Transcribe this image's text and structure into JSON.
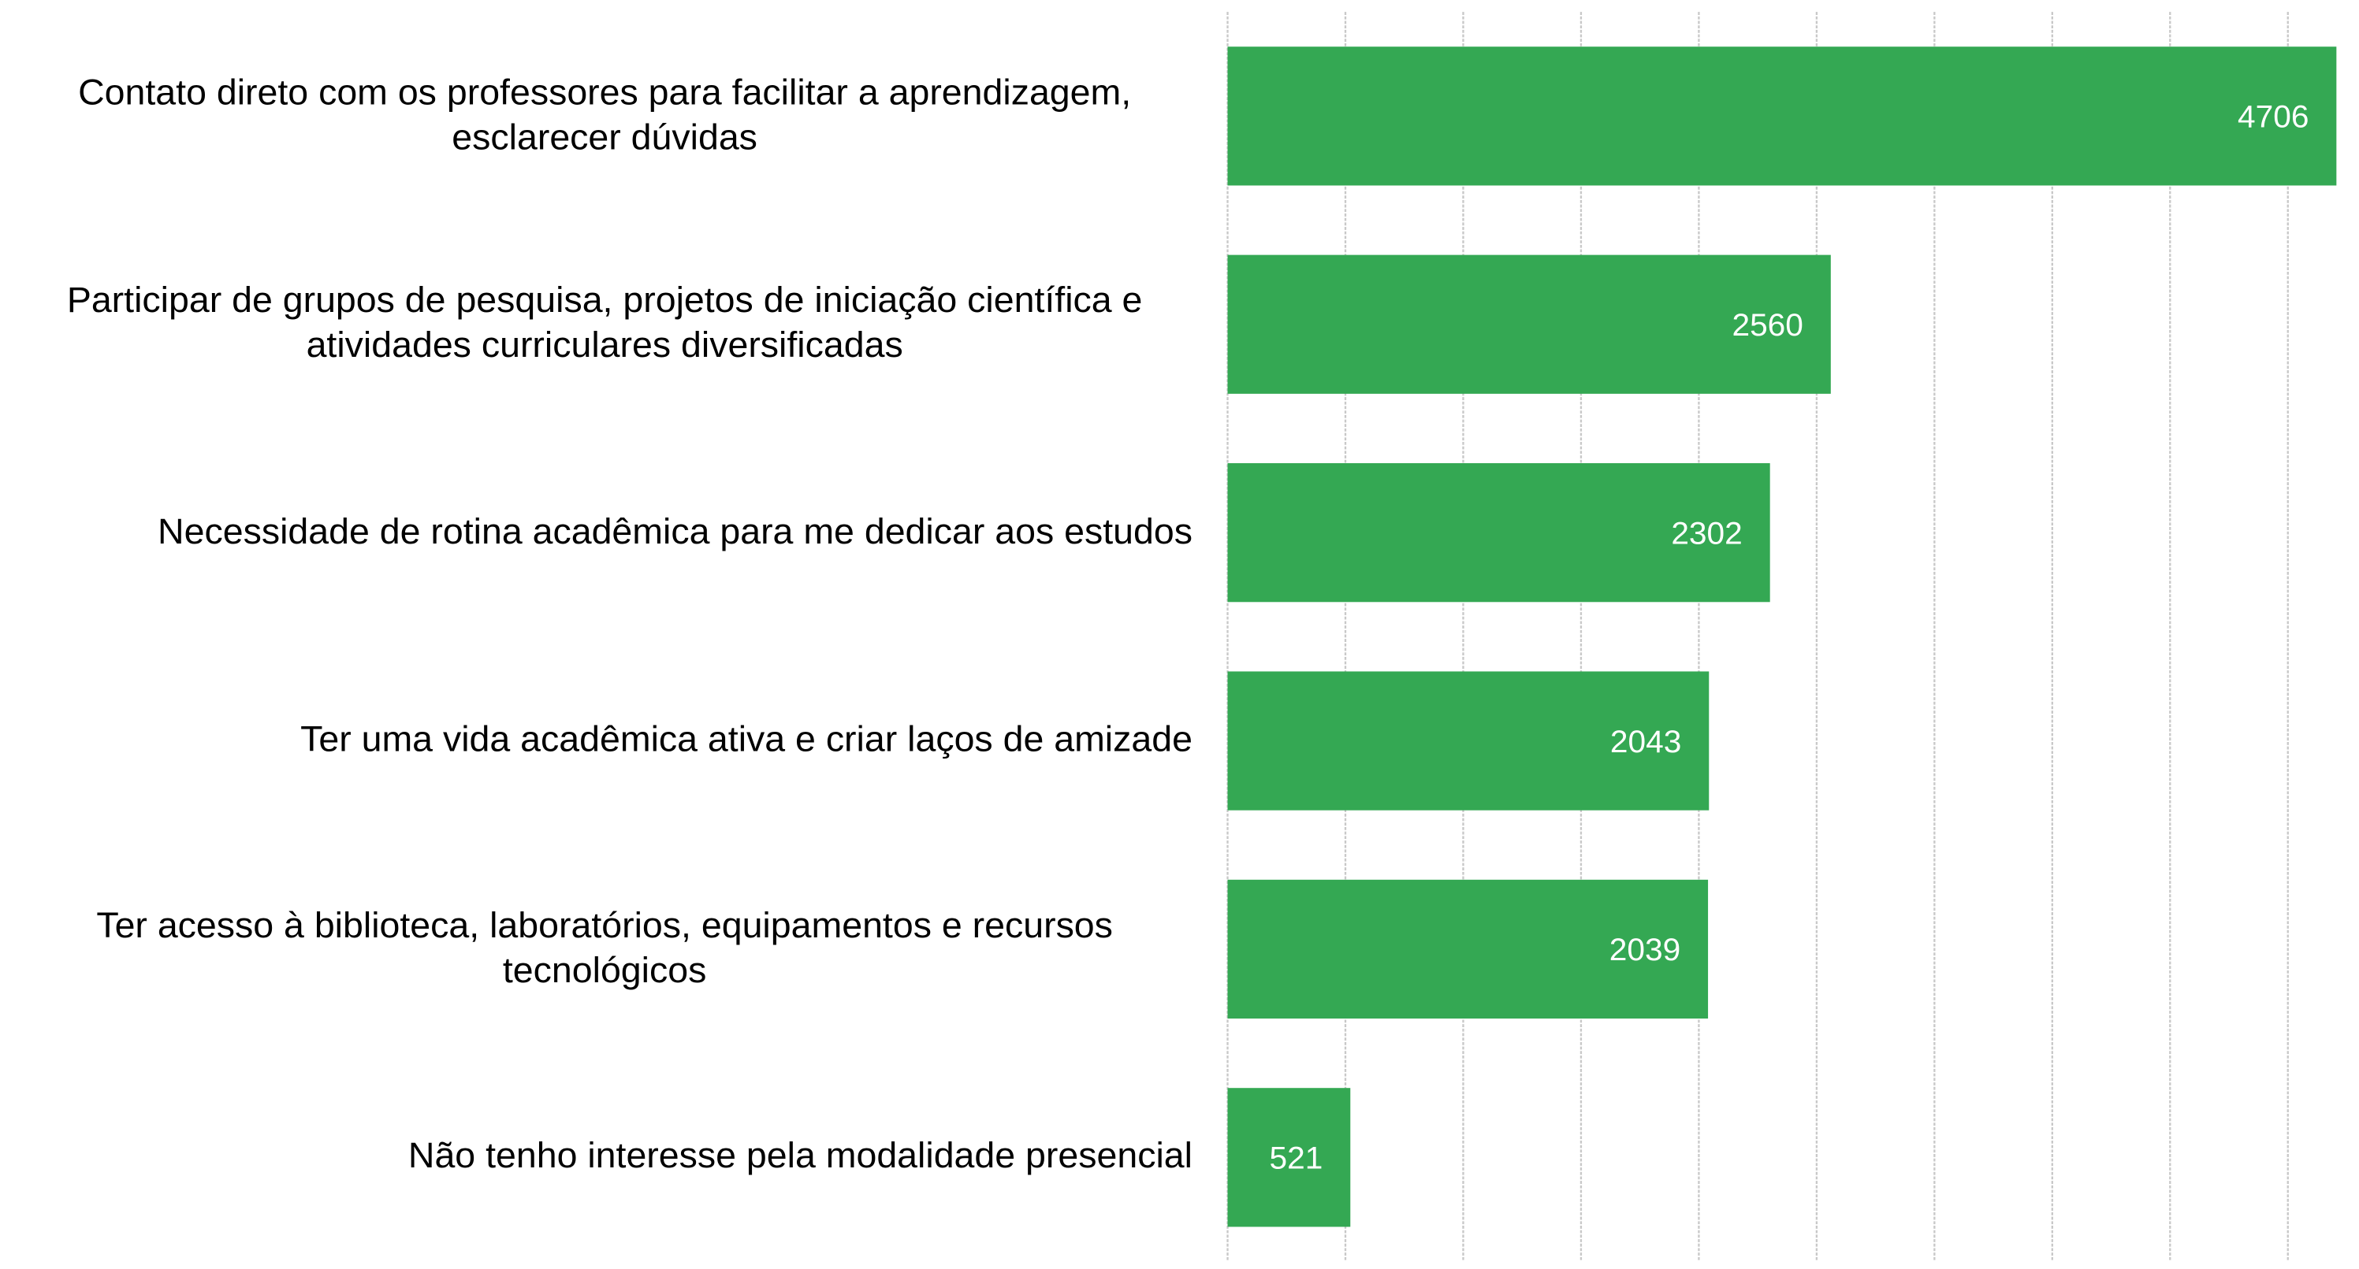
{
  "chart_data": {
    "type": "barh",
    "categories": [
      "Contato direto com os professores para facilitar a aprendizagem, esclarecer dúvidas",
      "Participar de grupos de pesquisa, projetos de iniciação científica e atividades curriculares diversificadas",
      "Necessidade de rotina acadêmica para me dedicar aos estudos",
      "Ter uma vida acadêmica ativa e criar laços de amizade",
      "Ter acesso à biblioteca, laboratórios, equipamentos e recursos tecnológicos",
      "Não tenho interesse pela modalidade presencial"
    ],
    "values": [
      4706,
      2560,
      2302,
      2043,
      2039,
      521
    ],
    "color": "#34a853",
    "xlim": [
      0,
      4750
    ],
    "xticks": [
      0,
      500,
      1000,
      1500,
      2000,
      2500,
      3000,
      3500,
      4000,
      4500
    ],
    "grid": true
  }
}
